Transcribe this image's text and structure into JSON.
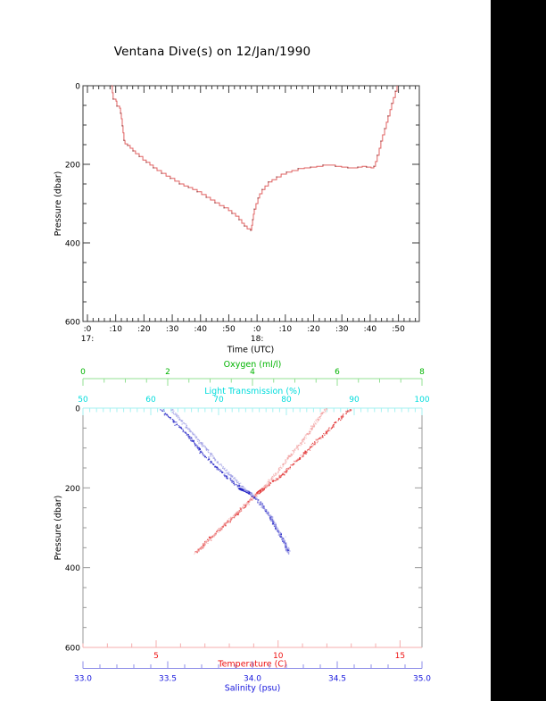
{
  "title": "Ventana Dive(s) on 12/Jan/1990",
  "colors": {
    "background": "#ffffff",
    "right_bar": "#000000",
    "frame_top": "#3a3a3a",
    "frame_side_bottom": "#999999",
    "text": "#000000",
    "dive_line": "#e06060",
    "dive_marker": "#5a2a2a",
    "oxygen": "#00b400",
    "oxygen_line": "#93e093",
    "light": "#00dcdc",
    "light_line": "#a5f2f2",
    "temperature": "#ee1111",
    "temperature_line": "#f5adad",
    "temperature_scatter": "#e13030",
    "temperature_scatter_light": "#f2a4a4",
    "salinity": "#1818dd",
    "salinity_line": "#8d8de8",
    "salinity_scatter": "#2626c6",
    "salinity_scatter_light": "#9c9ce4"
  },
  "chart_data": [
    {
      "type": "line",
      "title": "Ventana Dive(s) on 12/Jan/1990",
      "xlabel": "Time (UTC)",
      "ylabel": "Pressure (dbar)",
      "x_hour_labels": [
        "17:",
        "18:"
      ],
      "x_hour_minutes": [
        0,
        60
      ],
      "x_tick_labels": [
        ":0",
        ":10",
        ":20",
        ":30",
        ":40",
        ":50",
        ":0",
        ":10",
        ":20",
        ":30",
        ":40",
        ":50"
      ],
      "x_tick_minutes": [
        0,
        10,
        20,
        30,
        40,
        50,
        60,
        70,
        80,
        90,
        100,
        110
      ],
      "x_minor_step_minutes": 2,
      "xlim_minutes": [
        -1.6,
        117.4
      ],
      "ylim": [
        0,
        600
      ],
      "y_tick_labels": [
        "0",
        "200",
        "400",
        "600"
      ],
      "y_ticks": [
        0,
        200,
        400,
        600
      ],
      "y_minor_step": 50,
      "points_time_pressure": [
        [
          8.5,
          0
        ],
        [
          8.8,
          18
        ],
        [
          9.1,
          34
        ],
        [
          10.1,
          39
        ],
        [
          10.4,
          52
        ],
        [
          11.4,
          57
        ],
        [
          11.7,
          70
        ],
        [
          12.0,
          84
        ],
        [
          12.3,
          102
        ],
        [
          12.6,
          120
        ],
        [
          12.9,
          139
        ],
        [
          13.3,
          148
        ],
        [
          14.2,
          152
        ],
        [
          15.1,
          159
        ],
        [
          16.1,
          166
        ],
        [
          17.0,
          173
        ],
        [
          18.3,
          180
        ],
        [
          19.6,
          189
        ],
        [
          20.8,
          195
        ],
        [
          22.1,
          202
        ],
        [
          23.3,
          209
        ],
        [
          24.6,
          216
        ],
        [
          26.2,
          223
        ],
        [
          27.8,
          230
        ],
        [
          29.3,
          236
        ],
        [
          30.9,
          243
        ],
        [
          32.5,
          250
        ],
        [
          34.1,
          255
        ],
        [
          35.7,
          259
        ],
        [
          37.2,
          264
        ],
        [
          38.8,
          270
        ],
        [
          40.4,
          277
        ],
        [
          42.0,
          284
        ],
        [
          43.5,
          291
        ],
        [
          45.1,
          298
        ],
        [
          46.7,
          305
        ],
        [
          48.3,
          311
        ],
        [
          49.9,
          318
        ],
        [
          51.1,
          325
        ],
        [
          52.4,
          332
        ],
        [
          53.6,
          341
        ],
        [
          54.6,
          350
        ],
        [
          55.5,
          357
        ],
        [
          56.5,
          364
        ],
        [
          57.7,
          368
        ],
        [
          58.1,
          355
        ],
        [
          58.4,
          341
        ],
        [
          58.7,
          327
        ],
        [
          59.0,
          314
        ],
        [
          59.6,
          300
        ],
        [
          60.3,
          286
        ],
        [
          60.9,
          275
        ],
        [
          61.8,
          264
        ],
        [
          62.8,
          255
        ],
        [
          64.0,
          245
        ],
        [
          65.3,
          239
        ],
        [
          66.9,
          232
        ],
        [
          68.5,
          225
        ],
        [
          70.4,
          220
        ],
        [
          72.3,
          216
        ],
        [
          74.5,
          211
        ],
        [
          76.7,
          209
        ],
        [
          78.9,
          207
        ],
        [
          81.1,
          205
        ],
        [
          83.3,
          202
        ],
        [
          85.5,
          202
        ],
        [
          87.7,
          205
        ],
        [
          89.9,
          207
        ],
        [
          92.1,
          209
        ],
        [
          94.0,
          209
        ],
        [
          95.6,
          207
        ],
        [
          97.2,
          205
        ],
        [
          98.7,
          207
        ],
        [
          100.3,
          209
        ],
        [
          101.3,
          205
        ],
        [
          101.9,
          193
        ],
        [
          102.5,
          177
        ],
        [
          103.2,
          159
        ],
        [
          103.8,
          141
        ],
        [
          104.4,
          125
        ],
        [
          105.1,
          109
        ],
        [
          105.7,
          93
        ],
        [
          106.3,
          77
        ],
        [
          107.0,
          61
        ],
        [
          107.6,
          45
        ],
        [
          108.2,
          30
        ],
        [
          108.9,
          14
        ],
        [
          109.5,
          0
        ]
      ]
    },
    {
      "type": "scatter",
      "ylabel": "Pressure (dbar)",
      "ylim": [
        0,
        600
      ],
      "y_tick_labels": [
        "0",
        "200",
        "400",
        "600"
      ],
      "y_ticks": [
        0,
        200,
        400,
        600
      ],
      "y_minor_step": 50,
      "axes": {
        "oxygen": {
          "label": "Oxygen (ml/l)",
          "tick_labels": [
            "0",
            "2",
            "4",
            "6",
            "8"
          ],
          "tick_values": [
            0,
            2,
            4,
            6,
            8
          ],
          "minor_step": 0.5,
          "range": [
            0,
            8
          ],
          "position": "floating-top"
        },
        "light": {
          "label": "Light Transmission (%)",
          "tick_labels": [
            "50",
            "60",
            "70",
            "80",
            "90",
            "100"
          ],
          "tick_values": [
            50,
            60,
            70,
            80,
            90,
            100
          ],
          "minor_step": 1,
          "range": [
            50,
            100
          ],
          "position": "box-top"
        },
        "temperature": {
          "label": "Temperature (C)",
          "tick_labels": [
            "5",
            "10",
            "15"
          ],
          "tick_values": [
            5,
            10,
            15
          ],
          "minor_step": 1,
          "range": [
            2,
            15.9
          ],
          "position": "box-bottom"
        },
        "salinity": {
          "label": "Salinity (psu)",
          "tick_labels": [
            "33.0",
            "33.5",
            "34.0",
            "34.5",
            "35.0"
          ],
          "tick_values": [
            33,
            33.5,
            34,
            34.5,
            35
          ],
          "minor_step": 0.1,
          "range": [
            33,
            35
          ],
          "position": "floating-bottom"
        }
      },
      "series": [
        {
          "name": "temperature-descent",
          "axis": "temperature",
          "color_key": "temperature_scatter",
          "cluster": {
            "pressure_range": [
              202,
              214
            ],
            "count": 80
          },
          "profile_pressure_value": [
            [
              2,
              13.0
            ],
            [
              25,
              12.55
            ],
            [
              55,
              12.1
            ],
            [
              85,
              11.55
            ],
            [
              115,
              11.05
            ],
            [
              145,
              10.55
            ],
            [
              175,
              10.05
            ],
            [
              200,
              9.45
            ],
            [
              212,
              9.2
            ],
            [
              240,
              8.7
            ],
            [
              270,
              8.25
            ],
            [
              300,
              7.7
            ],
            [
              330,
              7.15
            ],
            [
              362,
              6.65
            ]
          ]
        },
        {
          "name": "temperature-ascent",
          "axis": "temperature",
          "color_key": "temperature_scatter_light",
          "cluster": null,
          "profile_pressure_value": [
            [
              2,
              12.0
            ],
            [
              30,
              11.6
            ],
            [
              60,
              11.3
            ],
            [
              90,
              10.9
            ],
            [
              120,
              10.5
            ],
            [
              150,
              10.1
            ],
            [
              180,
              9.7
            ],
            [
              205,
              9.35
            ],
            [
              215,
              9.15
            ],
            [
              245,
              8.6
            ],
            [
              275,
              8.1
            ],
            [
              305,
              7.6
            ],
            [
              335,
              7.1
            ],
            [
              365,
              6.6
            ]
          ]
        },
        {
          "name": "salinity-descent",
          "axis": "salinity",
          "color_key": "salinity_scatter",
          "cluster": {
            "pressure_range": [
              202,
              214
            ],
            "count": 80
          },
          "profile_pressure_value": [
            [
              3,
              33.46
            ],
            [
              30,
              33.53
            ],
            [
              60,
              33.6
            ],
            [
              90,
              33.66
            ],
            [
              120,
              33.72
            ],
            [
              150,
              33.79
            ],
            [
              180,
              33.87
            ],
            [
              203,
              33.93
            ],
            [
              212,
              33.98
            ],
            [
              240,
              34.05
            ],
            [
              270,
              34.1
            ],
            [
              300,
              34.14
            ],
            [
              330,
              34.18
            ],
            [
              362,
              34.21
            ]
          ]
        },
        {
          "name": "salinity-ascent",
          "axis": "salinity",
          "color_key": "salinity_scatter_light",
          "cluster": null,
          "profile_pressure_value": [
            [
              3,
              33.52
            ],
            [
              30,
              33.58
            ],
            [
              60,
              33.64
            ],
            [
              90,
              33.7
            ],
            [
              120,
              33.76
            ],
            [
              150,
              33.83
            ],
            [
              180,
              33.9
            ],
            [
              205,
              33.96
            ],
            [
              215,
              34.0
            ],
            [
              245,
              34.06
            ],
            [
              275,
              34.11
            ],
            [
              305,
              34.15
            ],
            [
              335,
              34.19
            ],
            [
              365,
              34.22
            ]
          ]
        }
      ]
    }
  ]
}
